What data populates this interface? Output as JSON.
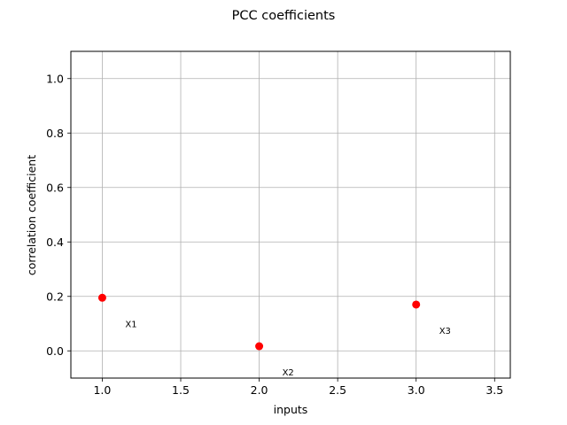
{
  "chart_data": {
    "type": "scatter",
    "title": "PCC coefficients",
    "xlabel": "inputs",
    "ylabel": "correlation coefficient",
    "xlim": [
      0.8,
      3.6
    ],
    "ylim": [
      -0.1,
      1.1
    ],
    "xticks": [
      1.0,
      1.5,
      2.0,
      2.5,
      3.0,
      3.5
    ],
    "xtick_labels": [
      "1.0",
      "1.5",
      "2.0",
      "2.5",
      "3.0",
      "3.5"
    ],
    "yticks": [
      0.0,
      0.2,
      0.4,
      0.6,
      0.8,
      1.0
    ],
    "ytick_labels": [
      "0.0",
      "0.2",
      "0.4",
      "0.6",
      "0.8",
      "1.0"
    ],
    "grid": true,
    "marker_color": "#ff0000",
    "points": [
      {
        "x": 1,
        "y": 0.195,
        "label": "X1"
      },
      {
        "x": 2,
        "y": 0.017,
        "label": "X2"
      },
      {
        "x": 3,
        "y": 0.17,
        "label": "X3"
      }
    ]
  }
}
